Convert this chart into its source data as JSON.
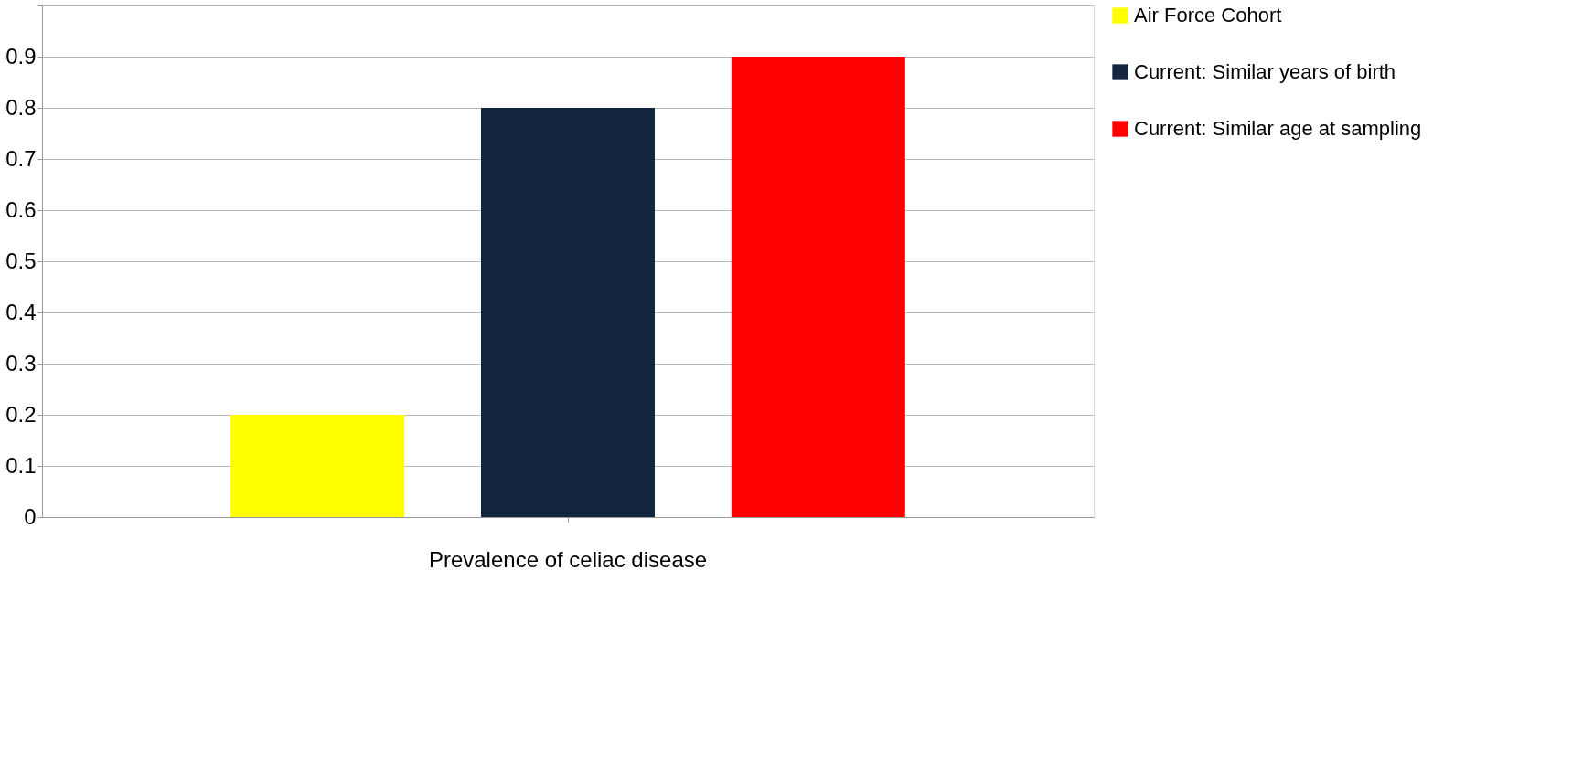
{
  "chart_data": {
    "type": "bar",
    "categories": [
      "Prevalence of celiac disease"
    ],
    "series": [
      {
        "name": "Air Force Cohort",
        "color": "#ffff00",
        "values": [
          0.2
        ]
      },
      {
        "name": "Current: Similar years of birth",
        "color": "#13253f",
        "values": [
          0.8
        ]
      },
      {
        "name": "Current: Similar age at sampling",
        "color": "#ff0000",
        "values": [
          0.9
        ]
      }
    ],
    "ylim": [
      0,
      1
    ],
    "yticks": [
      0,
      0.1,
      0.2,
      0.3,
      0.4,
      0.5,
      0.6,
      0.7,
      0.8,
      0.9,
      {
        "value": 1,
        "label": null
      }
    ],
    "grid": "y",
    "legend": "right"
  }
}
